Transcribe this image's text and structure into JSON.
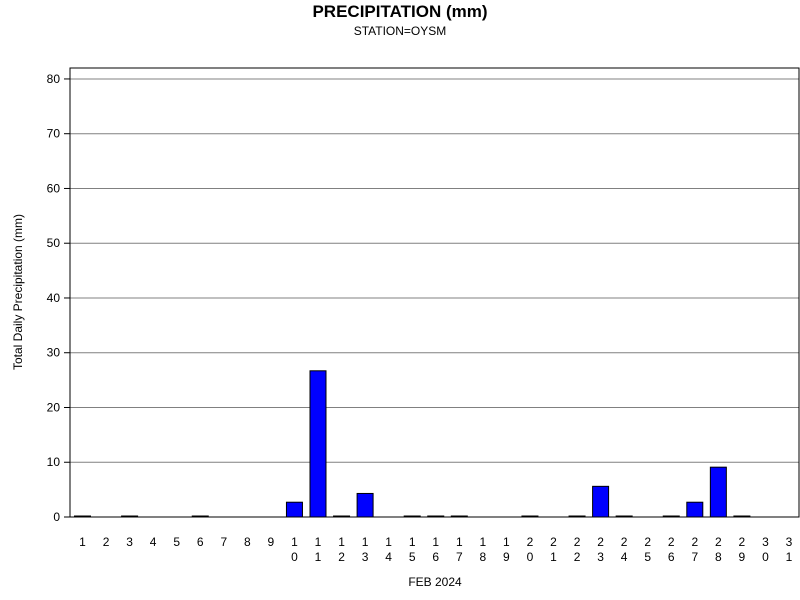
{
  "chart_data": {
    "type": "bar",
    "title": "PRECIPITATION (mm)",
    "subtitle": "STATION=OYSM",
    "xlabel": "FEB 2024",
    "ylabel": "Total Daily Precipitation (mm)",
    "ylim": [
      0,
      82
    ],
    "yticks": [
      0,
      10,
      20,
      30,
      40,
      50,
      60,
      70,
      80
    ],
    "grid": true,
    "legend": "none",
    "bar_color": "#0000ff",
    "categories": [
      "1",
      "2",
      "3",
      "4",
      "5",
      "6",
      "7",
      "8",
      "9",
      "10",
      "11",
      "12",
      "13",
      "14",
      "15",
      "16",
      "17",
      "18",
      "19",
      "20",
      "21",
      "22",
      "23",
      "24",
      "25",
      "26",
      "27",
      "28",
      "29",
      "30",
      "31"
    ],
    "values": [
      0.1,
      null,
      0.1,
      null,
      null,
      0.1,
      null,
      null,
      null,
      2.7,
      26.7,
      0.1,
      4.3,
      null,
      0.1,
      0.1,
      0.1,
      null,
      null,
      0.1,
      null,
      0.1,
      5.6,
      0.1,
      null,
      0.1,
      2.7,
      9.1,
      0.1,
      null,
      null
    ]
  }
}
